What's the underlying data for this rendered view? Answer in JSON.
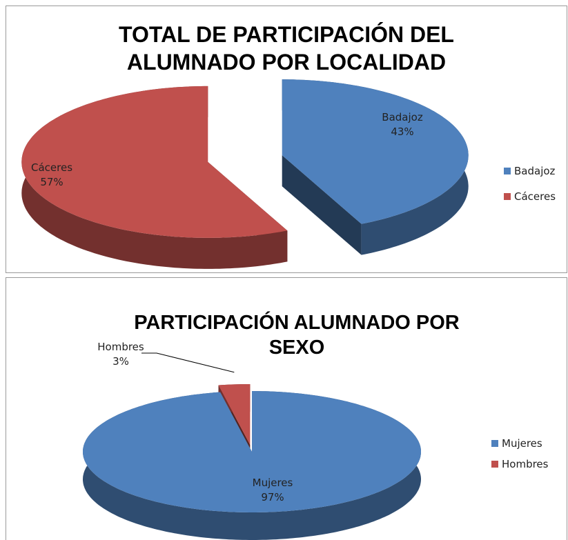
{
  "chart_data": [
    {
      "type": "pie3d",
      "title": "TOTAL DE PARTICIPACIÓN DEL ALUMNADO POR LOCALIDAD",
      "categories": [
        "Badajoz",
        "Cáceres"
      ],
      "values": [
        43,
        57
      ],
      "value_labels": [
        "43%",
        "57%"
      ],
      "colors": [
        "#4f81bd",
        "#c0504d"
      ],
      "legend": "right"
    },
    {
      "type": "pie3d",
      "title": "PARTICIPACIÓN ALUMNADO POR SEXO",
      "categories": [
        "Mujeres",
        "Hombres"
      ],
      "values": [
        97,
        3
      ],
      "value_labels": [
        "97%",
        "3%"
      ],
      "colors": [
        "#4f81bd",
        "#c0504d"
      ],
      "legend": "right"
    }
  ]
}
